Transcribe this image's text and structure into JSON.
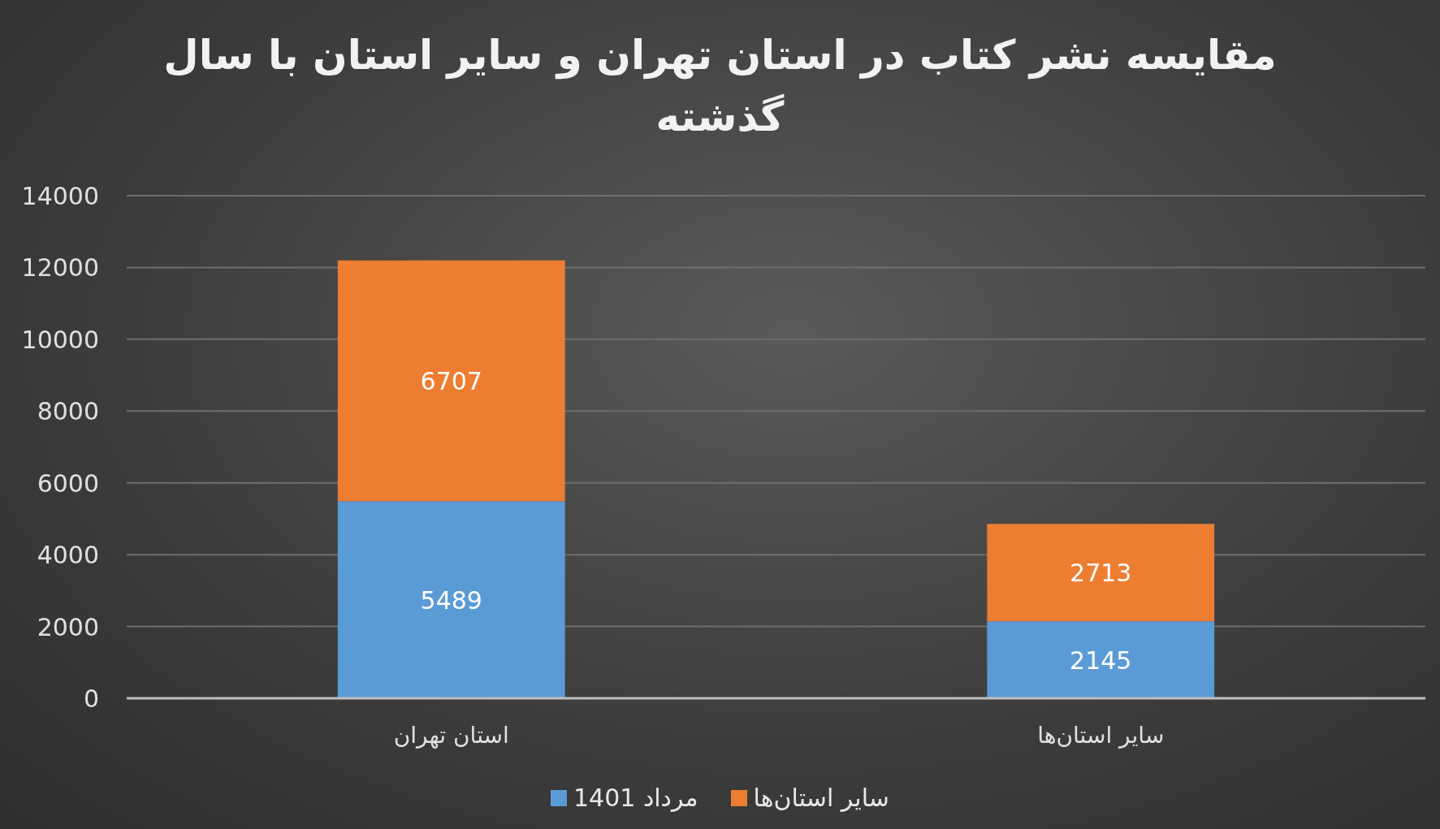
{
  "chart_data": {
    "type": "bar",
    "title": "مقایسه نشر کتاب در استان تهران و سایر استان با سال گذشته",
    "categories": [
      "استان تهران",
      "سایر استان‌ها"
    ],
    "series": [
      {
        "name": "مرداد 1401",
        "color": "#5b9bd5",
        "values": [
          5489,
          2145
        ]
      },
      {
        "name": "سایر استان‌ها",
        "color": "#ed7d31",
        "values": [
          6707,
          2713
        ]
      }
    ],
    "stacked": true,
    "ylim": [
      0,
      14000
    ],
    "yticks": [
      0,
      2000,
      4000,
      6000,
      8000,
      10000,
      12000,
      14000
    ],
    "grid": "y",
    "legend": "bottom",
    "data_labels": true
  }
}
